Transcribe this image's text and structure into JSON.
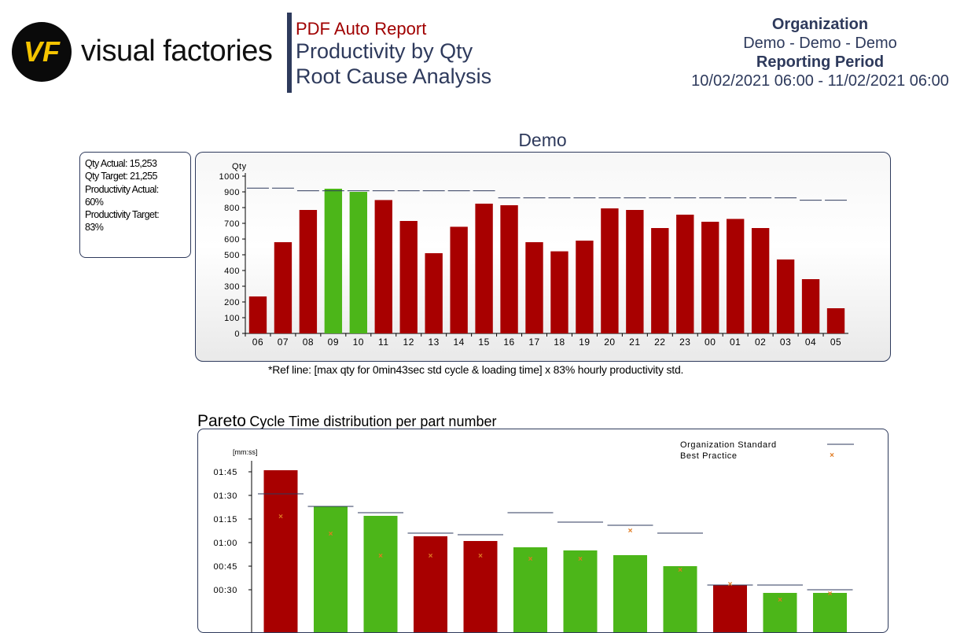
{
  "header": {
    "logo_mark": "VF",
    "logo_text": "visual factories",
    "report_kind": "PDF Auto Report",
    "title_line1": "Productivity by Qty",
    "title_line2": "Root Cause Analysis",
    "org_label": "Organization",
    "org_value": "Demo - Demo - Demo",
    "period_label": "Reporting Period",
    "period_value": "10/02/2021 06:00 - 11/02/2021 06:00"
  },
  "summary": {
    "lines": [
      "Qty Actual: 15,253",
      "Qty Target: 21,255",
      "Productivity Actual:",
      "60%",
      "Productivity Target:",
      "83%"
    ]
  },
  "colors": {
    "red": "#a80000",
    "green": "#4cb619",
    "navy": "#2e3a5c",
    "ref": "#2e3a5c"
  },
  "ref_note": "*Ref line: [max qty for 0min43sec std cycle & loading time] x 83% hourly productivity std.",
  "pareto": {
    "title_big": "Pareto",
    "title_small": "Cycle Time distribution per part number"
  },
  "chart_data": [
    {
      "type": "bar",
      "title": "Demo",
      "ylabel": "Qty",
      "ylim": [
        0,
        1000
      ],
      "yticks": [
        "0",
        "100",
        "200",
        "300",
        "400",
        "500",
        "600",
        "700",
        "800",
        "900",
        "1000"
      ],
      "categories": [
        "06",
        "07",
        "08",
        "09",
        "10",
        "11",
        "12",
        "13",
        "14",
        "15",
        "16",
        "17",
        "18",
        "19",
        "20",
        "21",
        "22",
        "23",
        "00",
        "01",
        "02",
        "03",
        "04",
        "05"
      ],
      "values": [
        235,
        580,
        785,
        920,
        900,
        848,
        715,
        510,
        678,
        825,
        815,
        580,
        522,
        590,
        795,
        785,
        670,
        755,
        710,
        728,
        670,
        470,
        345,
        160
      ],
      "colors": [
        "red",
        "red",
        "red",
        "green",
        "green",
        "red",
        "red",
        "red",
        "red",
        "red",
        "red",
        "red",
        "red",
        "red",
        "red",
        "red",
        "red",
        "red",
        "red",
        "red",
        "red",
        "red",
        "red",
        "red"
      ],
      "reference": [
        924,
        924,
        907,
        907,
        907,
        907,
        907,
        907,
        907,
        907,
        862,
        862,
        862,
        862,
        862,
        862,
        862,
        862,
        862,
        862,
        862,
        862,
        847,
        847
      ],
      "grid": false
    },
    {
      "type": "bar",
      "ylabel": "[mm:ss]",
      "ylim": [
        0,
        115
      ],
      "yticks": [
        "00:30",
        "00:45",
        "01:00",
        "01:15",
        "01:30",
        "01:45"
      ],
      "ytick_values": [
        30,
        45,
        60,
        75,
        90,
        105
      ],
      "legend": [
        "Organization Standard",
        "Best Practice"
      ],
      "legend_position": "top-right",
      "values": [
        106,
        83,
        77,
        64,
        61,
        57,
        55,
        52,
        45,
        33,
        28,
        28
      ],
      "colors": [
        "red",
        "green",
        "green",
        "red",
        "red",
        "green",
        "green",
        "green",
        "green",
        "red",
        "green",
        "green"
      ],
      "standard": [
        91,
        83,
        79,
        66,
        65,
        79,
        73,
        71,
        66,
        33,
        33,
        30
      ],
      "best_practice": [
        77,
        66,
        52,
        52,
        52,
        50,
        50,
        68,
        43,
        34,
        24,
        28
      ],
      "grid": false
    }
  ]
}
